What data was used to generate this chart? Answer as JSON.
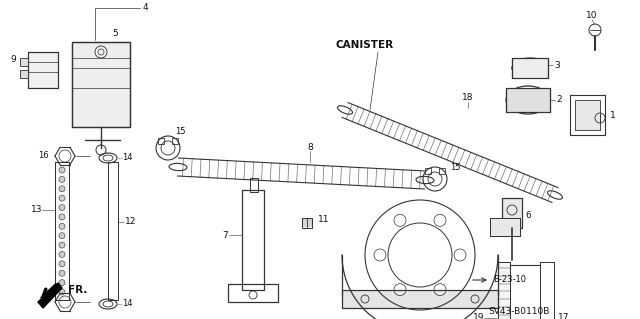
{
  "bg_color": "#ffffff",
  "diagram_code": "SV43-B0110B",
  "canister_label": "CANISTER",
  "arrow_label": "FR.",
  "line_color": "#333333",
  "text_color": "#111111"
}
